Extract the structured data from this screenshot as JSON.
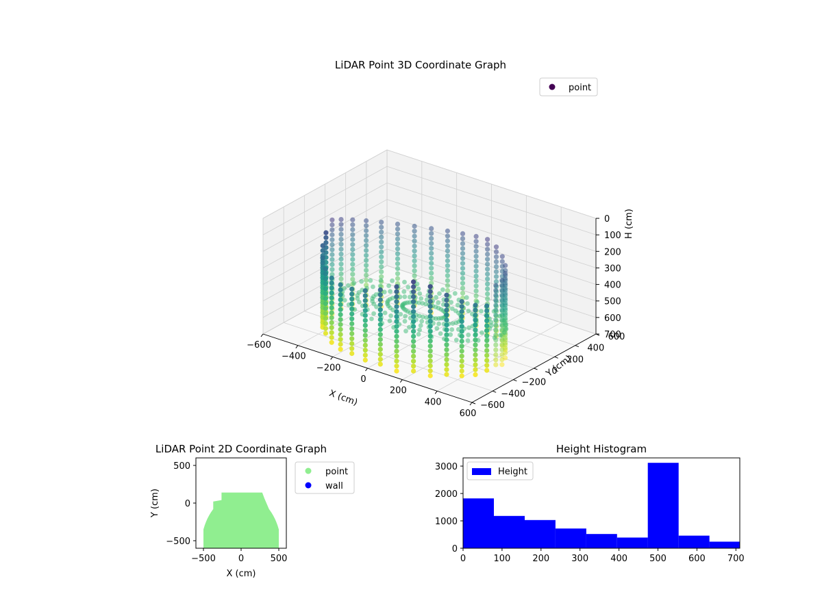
{
  "chart_data": [
    {
      "type": "scatter3d",
      "title": "LiDAR Point 3D Coordinate Graph",
      "xlabel": "X (cm)",
      "ylabel": "Y (cm)",
      "zlabel": "H (cm)",
      "xlim": [
        -600,
        600
      ],
      "ylim": [
        -600,
        600
      ],
      "zlim": [
        0,
        700
      ],
      "z_inverted": true,
      "x_ticks": [
        -600,
        -400,
        -200,
        0,
        200,
        400,
        600
      ],
      "x_tick_labels": [
        "−600",
        "−400",
        "−200",
        "0",
        "200",
        "400",
        "600"
      ],
      "y_ticks": [
        -600,
        -400,
        -200,
        0,
        200,
        400,
        600
      ],
      "y_tick_labels": [
        "−600",
        "−400",
        "−200",
        "0",
        "200",
        "400",
        "600"
      ],
      "z_ticks": [
        0,
        100,
        200,
        300,
        400,
        500,
        600,
        700
      ],
      "z_tick_labels": [
        "0",
        "100",
        "200",
        "300",
        "400",
        "500",
        "600",
        "700"
      ],
      "colormap": "viridis",
      "grid": true,
      "legend": {
        "position": "upper-right",
        "entries": [
          {
            "name": "point",
            "color": "#440154"
          }
        ]
      },
      "series": [
        {
          "name": "point",
          "shape": "room-wall-ring",
          "center_x": 0,
          "center_y": -150,
          "radius_x": 470,
          "radius_y": 400,
          "h_min": 0,
          "h_max": 700,
          "floor_height": 540
        }
      ]
    },
    {
      "type": "scatter",
      "title": "LiDAR Point 2D Coordinate Graph",
      "xlabel": "X (cm)",
      "ylabel": "Y (cm)",
      "xlim": [
        -600,
        600
      ],
      "ylim": [
        -600,
        600
      ],
      "x_ticks": [
        -500,
        0,
        500
      ],
      "x_tick_labels": [
        "−500",
        "0",
        "500"
      ],
      "y_ticks": [
        -500,
        0,
        500
      ],
      "y_tick_labels": [
        "−500",
        "0",
        "500"
      ],
      "grid": false,
      "legend": {
        "position": "outside-right",
        "entries": [
          {
            "name": "point",
            "color": "#90ee90"
          },
          {
            "name": "wall",
            "color": "#0000ff"
          }
        ]
      },
      "series": [
        {
          "name": "point",
          "color": "#90ee90",
          "region": "filled-footprint",
          "x_range": [
            -500,
            500
          ],
          "y_range": [
            -600,
            150
          ]
        },
        {
          "name": "wall",
          "color": "#0000ff",
          "values": []
        }
      ]
    },
    {
      "type": "bar",
      "subtype": "histogram",
      "title": "Height Histogram",
      "xlabel": "",
      "ylabel": "",
      "xlim": [
        0,
        710
      ],
      "ylim": [
        0,
        3300
      ],
      "x_ticks": [
        0,
        100,
        200,
        300,
        400,
        500,
        600,
        700
      ],
      "x_tick_labels": [
        "0",
        "100",
        "200",
        "300",
        "400",
        "500",
        "600",
        "700"
      ],
      "y_ticks": [
        0,
        1000,
        2000,
        3000
      ],
      "y_tick_labels": [
        "0",
        "1000",
        "2000",
        "3000"
      ],
      "bin_edges": [
        0,
        79,
        158,
        237,
        316,
        395,
        474,
        553,
        632,
        710
      ],
      "values": [
        1820,
        1180,
        1030,
        720,
        520,
        390,
        3120,
        460,
        240
      ],
      "color": "#0000ff",
      "legend": {
        "position": "upper-left",
        "entries": [
          {
            "name": "Height",
            "color": "#0000ff"
          }
        ]
      }
    }
  ]
}
